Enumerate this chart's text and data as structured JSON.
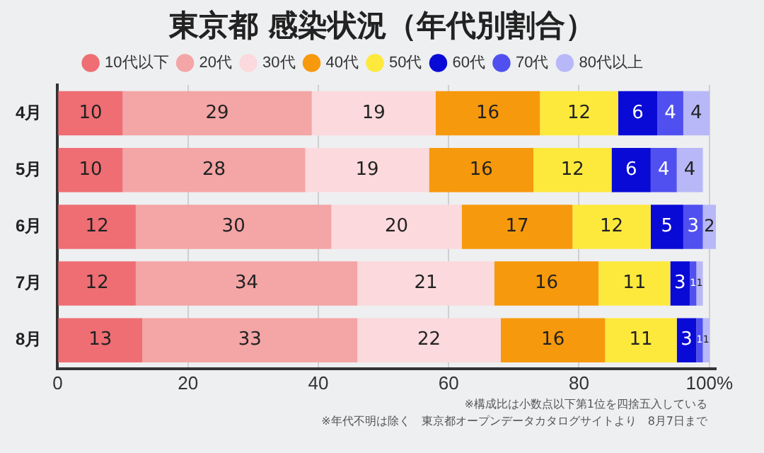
{
  "chart_data": {
    "type": "bar",
    "orientation": "horizontal",
    "stacked": true,
    "title": "東京都 感染状況（年代別割合）",
    "categories": [
      "4月",
      "5月",
      "6月",
      "7月",
      "8月"
    ],
    "series": [
      {
        "name": "10代以下",
        "color": "#ee6e73",
        "values": [
          10,
          10,
          12,
          12,
          13
        ]
      },
      {
        "name": "20代",
        "color": "#f4a5a5",
        "values": [
          29,
          28,
          30,
          34,
          33
        ]
      },
      {
        "name": "30代",
        "color": "#fbd9dc",
        "values": [
          19,
          19,
          20,
          21,
          22
        ]
      },
      {
        "name": "40代",
        "color": "#f7990c",
        "values": [
          16,
          16,
          17,
          16,
          16
        ]
      },
      {
        "name": "50代",
        "color": "#fde93c",
        "values": [
          12,
          12,
          12,
          11,
          11
        ]
      },
      {
        "name": "60代",
        "color": "#0a0ad6",
        "values": [
          6,
          6,
          5,
          3,
          3
        ]
      },
      {
        "name": "70代",
        "color": "#5050f0",
        "values": [
          4,
          4,
          3,
          1,
          1
        ]
      },
      {
        "name": "80代以上",
        "color": "#b8b8f8",
        "values": [
          4,
          4,
          2,
          1,
          1
        ]
      }
    ],
    "xlim": [
      0,
      101
    ],
    "xticks": [
      0,
      20,
      40,
      60,
      80,
      {
        "value": 100,
        "label": "100%"
      }
    ],
    "grid": "x",
    "legend": "top",
    "data_labels": true,
    "annotations": [
      "※構成比は小数点以下第1位を四捨五入している",
      "※年代不明は除く　東京都オープンデータカタログサイトより　8月7日まで"
    ]
  }
}
